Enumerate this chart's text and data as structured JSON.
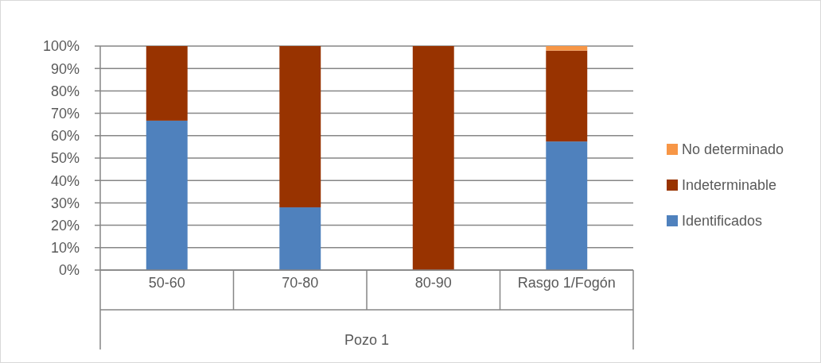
{
  "chart_data": {
    "type": "bar",
    "stacked": true,
    "categories": [
      "50-60",
      "70-80",
      "80-90",
      "Rasgo 1/Fogón"
    ],
    "xlabel": "Pozo 1",
    "series": [
      {
        "name": "Identificados",
        "color": "#4f81bd",
        "values": [
          66.7,
          28,
          0,
          57.4
        ]
      },
      {
        "name": "Indeterminable",
        "color": "#983300",
        "values": [
          33.3,
          72,
          100,
          40.6
        ]
      },
      {
        "name": "No determinado",
        "color": "#f79646",
        "values": [
          0,
          0,
          0,
          2
        ]
      }
    ],
    "ylim": [
      0,
      100
    ],
    "yticks": [
      {
        "value": 0,
        "label": "0%"
      },
      {
        "value": 10,
        "label": "10%"
      },
      {
        "value": 20,
        "label": "20%"
      },
      {
        "value": 30,
        "label": "30%"
      },
      {
        "value": 40,
        "label": "40%"
      },
      {
        "value": 50,
        "label": "50%"
      },
      {
        "value": 60,
        "label": "60%"
      },
      {
        "value": 70,
        "label": "70%"
      },
      {
        "value": 80,
        "label": "80%"
      },
      {
        "value": 90,
        "label": "90%"
      },
      {
        "value": 100,
        "label": "100%"
      }
    ],
    "grid": "y",
    "legend": "right"
  }
}
